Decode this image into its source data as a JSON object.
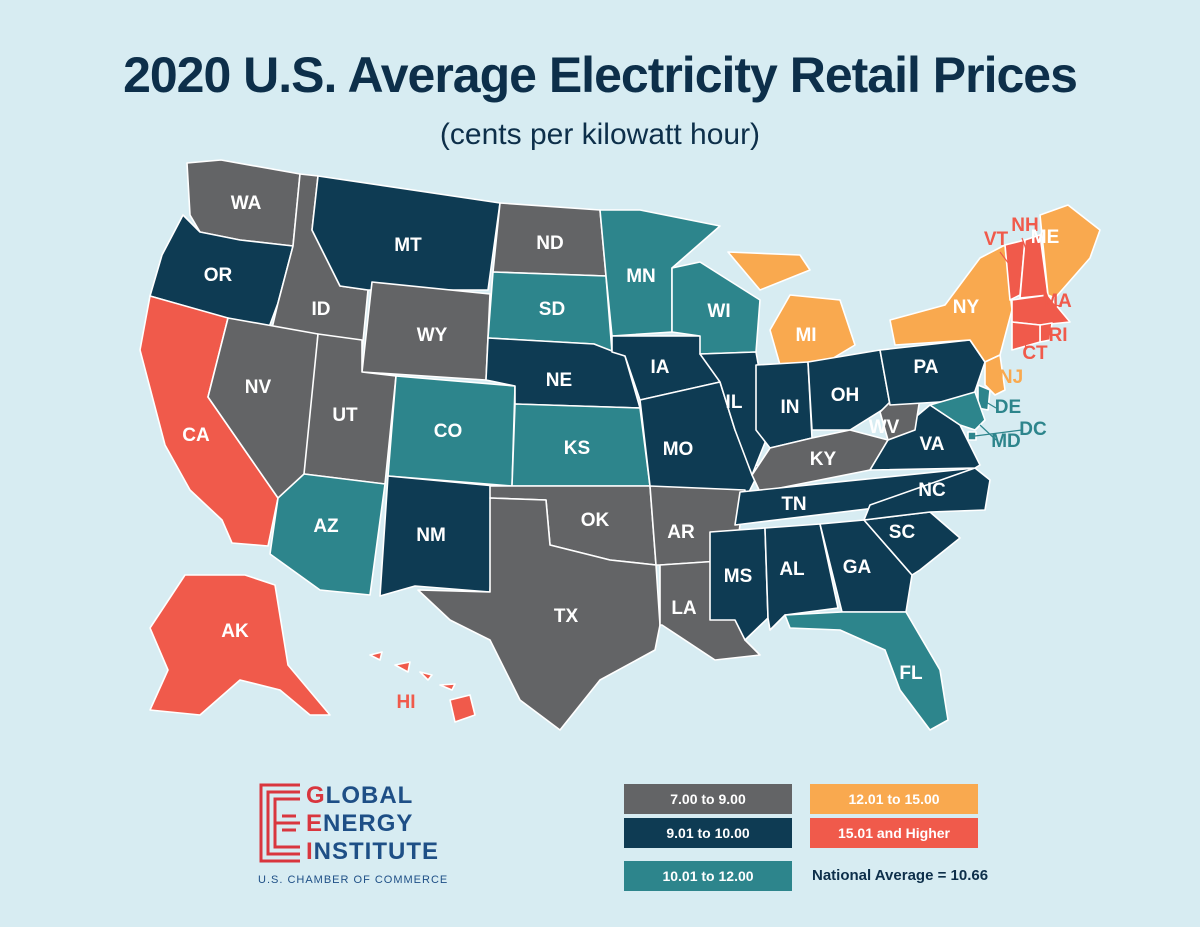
{
  "title": "2020 U.S. Average Electricity Retail Prices",
  "subtitle": "(cents per kilowatt hour)",
  "colors": {
    "cat1": "#636466",
    "cat2": "#0e3b53",
    "cat3": "#2d858c",
    "cat4": "#f9a94f",
    "cat5": "#f05a4b"
  },
  "legend": [
    {
      "label": "7.00 to 9.00",
      "category": "cat1"
    },
    {
      "label": "9.01 to 10.00",
      "category": "cat2"
    },
    {
      "label": "10.01 to 12.00",
      "category": "cat3"
    },
    {
      "label": "12.01 to 15.00",
      "category": "cat4"
    },
    {
      "label": "15.01 and Higher",
      "category": "cat5"
    }
  ],
  "national_average": "National Average = 10.66",
  "logo": {
    "line1_first": "G",
    "line1_rest": "LOBAL",
    "line2_first": "E",
    "line2_rest": "NERGY",
    "line3_first": "I",
    "line3_rest": "NSTITUTE",
    "sub": "U.S. CHAMBER OF COMMERCE"
  },
  "states": [
    {
      "abbr": "WA",
      "category": "cat1"
    },
    {
      "abbr": "OR",
      "category": "cat2"
    },
    {
      "abbr": "CA",
      "category": "cat5"
    },
    {
      "abbr": "ID",
      "category": "cat1"
    },
    {
      "abbr": "NV",
      "category": "cat1"
    },
    {
      "abbr": "MT",
      "category": "cat2"
    },
    {
      "abbr": "WY",
      "category": "cat1"
    },
    {
      "abbr": "UT",
      "category": "cat1"
    },
    {
      "abbr": "AZ",
      "category": "cat3"
    },
    {
      "abbr": "CO",
      "category": "cat3"
    },
    {
      "abbr": "NM",
      "category": "cat2"
    },
    {
      "abbr": "ND",
      "category": "cat1"
    },
    {
      "abbr": "SD",
      "category": "cat3"
    },
    {
      "abbr": "NE",
      "category": "cat2"
    },
    {
      "abbr": "KS",
      "category": "cat3"
    },
    {
      "abbr": "OK",
      "category": "cat1"
    },
    {
      "abbr": "TX",
      "category": "cat1"
    },
    {
      "abbr": "MN",
      "category": "cat3"
    },
    {
      "abbr": "IA",
      "category": "cat2"
    },
    {
      "abbr": "MO",
      "category": "cat2"
    },
    {
      "abbr": "AR",
      "category": "cat1"
    },
    {
      "abbr": "LA",
      "category": "cat1"
    },
    {
      "abbr": "WI",
      "category": "cat3"
    },
    {
      "abbr": "IL",
      "category": "cat2"
    },
    {
      "abbr": "MI",
      "category": "cat4"
    },
    {
      "abbr": "IN",
      "category": "cat2"
    },
    {
      "abbr": "OH",
      "category": "cat2"
    },
    {
      "abbr": "KY",
      "category": "cat1"
    },
    {
      "abbr": "TN",
      "category": "cat2"
    },
    {
      "abbr": "MS",
      "category": "cat2"
    },
    {
      "abbr": "AL",
      "category": "cat2"
    },
    {
      "abbr": "GA",
      "category": "cat2"
    },
    {
      "abbr": "FL",
      "category": "cat3"
    },
    {
      "abbr": "SC",
      "category": "cat2"
    },
    {
      "abbr": "NC",
      "category": "cat2"
    },
    {
      "abbr": "VA",
      "category": "cat2"
    },
    {
      "abbr": "WV",
      "category": "cat1"
    },
    {
      "abbr": "PA",
      "category": "cat2"
    },
    {
      "abbr": "NY",
      "category": "cat4"
    },
    {
      "abbr": "VT",
      "category": "cat5"
    },
    {
      "abbr": "NH",
      "category": "cat5"
    },
    {
      "abbr": "ME",
      "category": "cat4"
    },
    {
      "abbr": "MA",
      "category": "cat5"
    },
    {
      "abbr": "RI",
      "category": "cat5"
    },
    {
      "abbr": "CT",
      "category": "cat5"
    },
    {
      "abbr": "NJ",
      "category": "cat4"
    },
    {
      "abbr": "DE",
      "category": "cat3"
    },
    {
      "abbr": "MD",
      "category": "cat3"
    },
    {
      "abbr": "DC",
      "category": "cat3"
    },
    {
      "abbr": "AK",
      "category": "cat5"
    },
    {
      "abbr": "HI",
      "category": "cat5"
    }
  ]
}
